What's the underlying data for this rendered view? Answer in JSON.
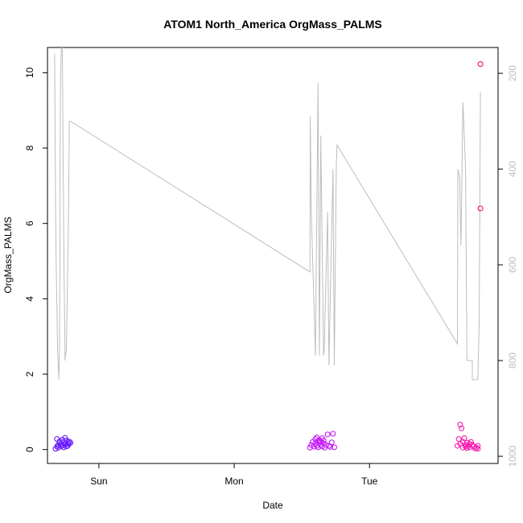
{
  "chart_data": {
    "type": "scatter",
    "title": "ATOM1 North_America OrgMass_PALMS",
    "xlabel": "Date",
    "ylabel": "OrgMass_PALMS",
    "xlim": [
      -0.38,
      2.95
    ],
    "ylim": [
      -0.37,
      10.67
    ],
    "x_ticks": [
      {
        "value": 0,
        "label": "Sun"
      },
      {
        "value": 1,
        "label": "Mon"
      },
      {
        "value": 2,
        "label": "Tue"
      }
    ],
    "y_ticks": [
      0,
      2,
      4,
      6,
      8,
      10
    ],
    "y2_ticks": [
      200,
      400,
      600,
      800,
      1000
    ],
    "y2lim": [
      1015,
      146
    ],
    "grid": false,
    "legend": "none",
    "colors": {
      "axis": "#000000",
      "altitude": "#bdbdbd"
    },
    "altitude_series": {
      "color": "#bdbdbd",
      "x": [
        -0.327,
        -0.32,
        -0.315,
        -0.305,
        -0.3,
        -0.297,
        -0.292,
        -0.288,
        -0.285,
        -0.275,
        -0.27,
        -0.265,
        -0.258,
        -0.25,
        -0.245,
        -0.24,
        -0.225,
        -0.218,
        -0.21,
        1.56,
        1.562,
        1.57,
        1.6,
        1.62,
        1.63,
        1.64,
        1.66,
        1.665,
        1.69,
        1.7,
        1.73,
        1.74,
        1.755,
        1.76,
        2.65,
        2.653,
        2.667,
        2.675,
        2.68,
        2.69,
        2.695,
        2.71,
        2.72,
        2.73,
        2.76,
        2.76,
        2.8,
        2.81,
        2.82
      ],
      "y": [
        160,
        500,
        600,
        780,
        810,
        840,
        800,
        600,
        250,
        100,
        150,
        350,
        600,
        800,
        785,
        780,
        500,
        300,
        300,
        615,
        290,
        490,
        790,
        220,
        790,
        330,
        790,
        780,
        490,
        810,
        400,
        810,
        390,
        350,
        765,
        400,
        420,
        560,
        480,
        260,
        290,
        400,
        800,
        800,
        800,
        840,
        840,
        730,
        240
      ]
    },
    "series": [
      {
        "color": "#6a1bff",
        "x": [
          -0.32,
          -0.31,
          -0.31,
          -0.3,
          -0.3,
          -0.29,
          -0.29,
          -0.28,
          -0.28,
          -0.27,
          -0.27,
          -0.26,
          -0.26,
          -0.25,
          -0.25,
          -0.24,
          -0.24,
          -0.23,
          -0.23,
          -0.22,
          -0.22,
          -0.21
        ],
        "y": [
          0.02,
          0.08,
          0.28,
          0.12,
          0.05,
          0.18,
          0.22,
          0.09,
          0.14,
          0.26,
          0.11,
          0.06,
          0.19,
          0.31,
          0.13,
          0.08,
          0.24,
          0.16,
          0.1,
          0.21,
          0.15,
          0.18
        ]
      },
      {
        "color": "#c51bf5",
        "x": [
          1.56,
          1.57,
          1.58,
          1.59,
          1.6,
          1.6,
          1.61,
          1.61,
          1.62,
          1.62,
          1.63,
          1.63,
          1.64,
          1.64,
          1.65,
          1.65,
          1.66,
          1.66,
          1.67,
          1.68,
          1.69,
          1.7,
          1.71,
          1.72,
          1.73,
          1.74
        ],
        "y": [
          0.05,
          0.12,
          0.2,
          0.08,
          0.15,
          0.28,
          0.1,
          0.32,
          0.22,
          0.06,
          0.18,
          0.25,
          0.12,
          0.21,
          0.08,
          0.3,
          0.16,
          0.24,
          0.05,
          0.12,
          0.4,
          0.1,
          0.07,
          0.19,
          0.42,
          0.06
        ]
      },
      {
        "color": "#f51bb0",
        "x": [
          2.65,
          2.66,
          2.67,
          2.67,
          2.68,
          2.69,
          2.69,
          2.7,
          2.71,
          2.71,
          2.72,
          2.72,
          2.73,
          2.74,
          2.74,
          2.75,
          2.76,
          2.77,
          2.78,
          2.79,
          2.8,
          2.8
        ],
        "y": [
          0.1,
          0.28,
          0.66,
          0.15,
          0.56,
          0.05,
          0.2,
          0.3,
          0.12,
          0.08,
          0.18,
          0.04,
          0.1,
          0.15,
          0.06,
          0.2,
          0.12,
          0.08,
          0.03,
          0.05,
          0.02,
          0.1
        ]
      },
      {
        "color": "#f5007a",
        "x": [
          2.82,
          2.82
        ],
        "y": [
          10.23,
          6.4
        ]
      }
    ]
  }
}
